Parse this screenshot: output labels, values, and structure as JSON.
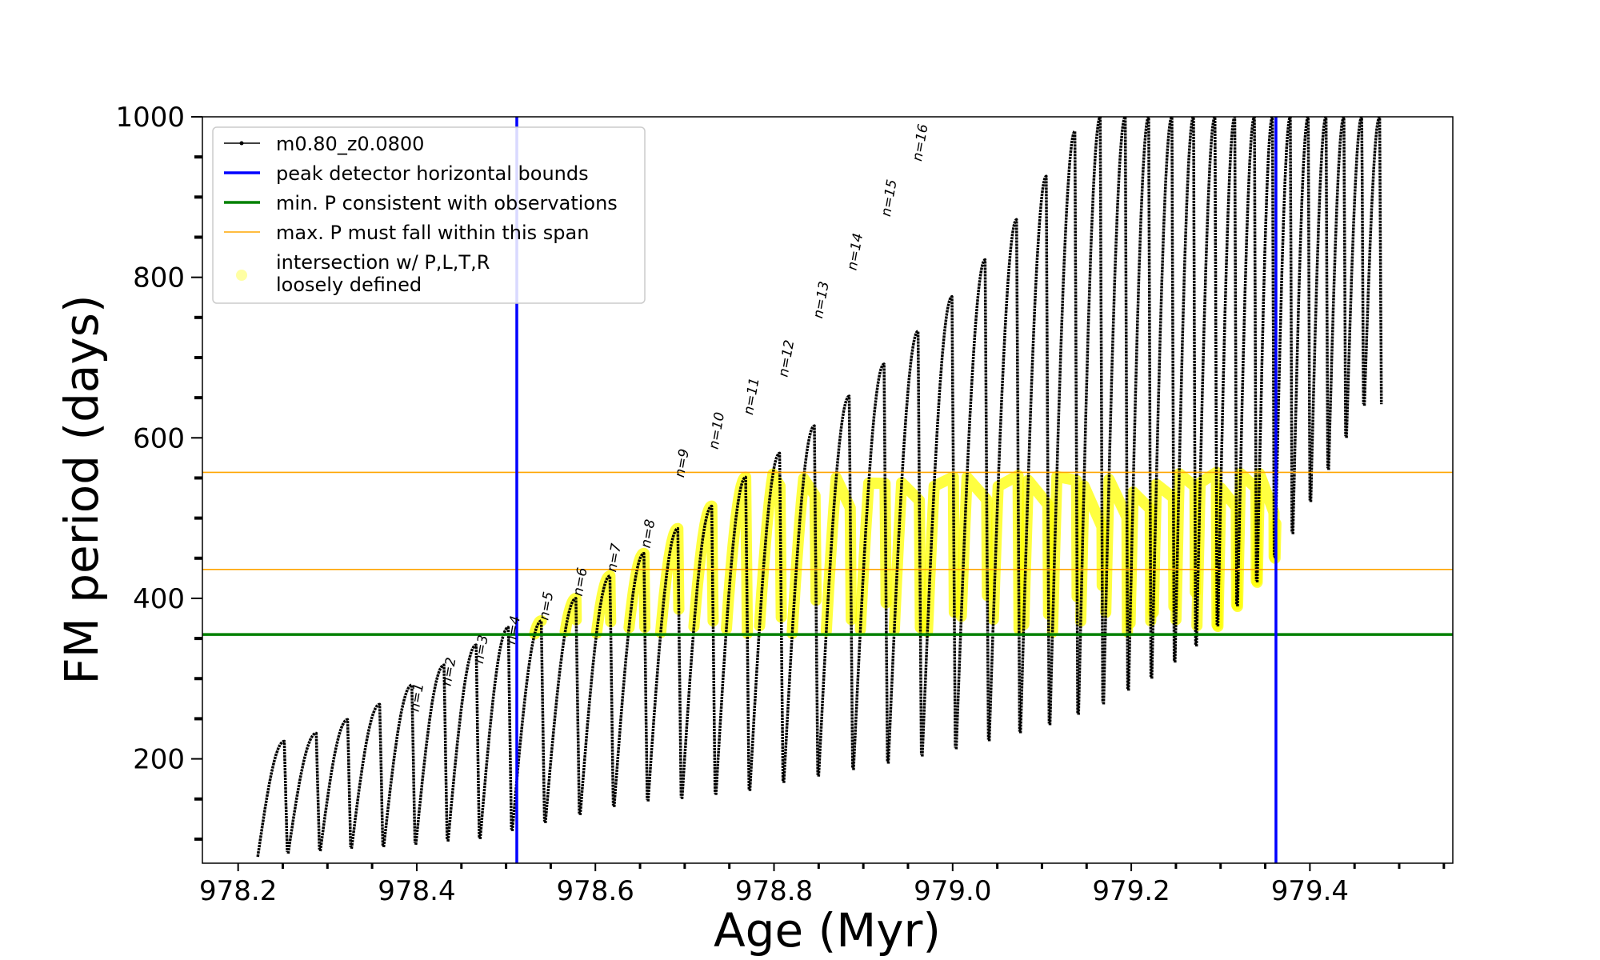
{
  "chart_data": {
    "type": "line",
    "title": "",
    "xlabel": "Age (Myr)",
    "ylabel": "FM period (days)",
    "xlim": [
      978.16,
      979.56
    ],
    "ylim": [
      70,
      1000
    ],
    "x_ticks": [
      "978.2",
      "978.4",
      "978.6",
      "978.8",
      "979.0",
      "979.2",
      "979.4"
    ],
    "x_tick_values": [
      978.2,
      978.4,
      978.6,
      978.8,
      979.0,
      979.2,
      979.4
    ],
    "y_ticks": [
      "200",
      "400",
      "600",
      "800",
      "1000"
    ],
    "y_tick_values": [
      200,
      400,
      600,
      800,
      1000
    ],
    "legend": {
      "placement": "upper-left",
      "entries": [
        {
          "label": "m0.80_z0.0800",
          "color": "#000000",
          "style": "line-dot"
        },
        {
          "label": "peak detector horizontal bounds",
          "color": "#0000ff",
          "style": "line"
        },
        {
          "label": "min. P consistent with observations",
          "color": "#008000",
          "style": "line"
        },
        {
          "label": "max. P must fall within this span",
          "color": "#ffa500",
          "style": "thin-line"
        },
        {
          "label": "intersection w/ P,L,T,R\nloosely defined",
          "color": "#ffff00",
          "style": "marker"
        }
      ]
    },
    "vertical_lines": [
      {
        "x": 978.512,
        "color": "#0000ff"
      },
      {
        "x": 979.362,
        "color": "#0000ff"
      }
    ],
    "horizontal_lines": [
      {
        "y": 355,
        "color": "#008000"
      },
      {
        "y": 436,
        "color": "#ffa500"
      },
      {
        "y": 557,
        "color": "#ffa500"
      }
    ],
    "series": [
      {
        "name": "m0.80_z0.0800",
        "color": "#000000",
        "pulses": [
          {
            "x0": 978.222,
            "x1": 978.255,
            "min": 78,
            "max": 222
          },
          {
            "x0": 978.256,
            "x1": 978.291,
            "min": 82,
            "max": 232
          },
          {
            "x0": 978.292,
            "x1": 978.326,
            "min": 85,
            "max": 249
          },
          {
            "x0": 978.327,
            "x1": 978.362,
            "min": 88,
            "max": 268
          },
          {
            "x0": 978.363,
            "x1": 978.398,
            "min": 90,
            "max": 292
          },
          {
            "x0": 978.399,
            "x1": 978.434,
            "min": 93,
            "max": 317
          },
          {
            "x0": 978.435,
            "x1": 978.47,
            "min": 97,
            "max": 342
          },
          {
            "x0": 978.471,
            "x1": 978.506,
            "min": 100,
            "max": 364
          },
          {
            "x0": 978.507,
            "x1": 978.543,
            "min": 110,
            "max": 372
          },
          {
            "x0": 978.544,
            "x1": 978.582,
            "min": 120,
            "max": 400
          },
          {
            "x0": 978.583,
            "x1": 978.62,
            "min": 130,
            "max": 428
          },
          {
            "x0": 978.621,
            "x1": 978.658,
            "min": 140,
            "max": 456
          },
          {
            "x0": 978.659,
            "x1": 978.696,
            "min": 147,
            "max": 487
          },
          {
            "x0": 978.697,
            "x1": 978.734,
            "min": 150,
            "max": 515
          },
          {
            "x0": 978.735,
            "x1": 978.772,
            "min": 155,
            "max": 551
          },
          {
            "x0": 978.773,
            "x1": 978.81,
            "min": 160,
            "max": 581
          },
          {
            "x0": 978.811,
            "x1": 978.849,
            "min": 170,
            "max": 615
          },
          {
            "x0": 978.85,
            "x1": 978.888,
            "min": 178,
            "max": 652
          },
          {
            "x0": 978.889,
            "x1": 978.927,
            "min": 186,
            "max": 692
          },
          {
            "x0": 978.928,
            "x1": 978.965,
            "min": 194,
            "max": 733
          },
          {
            "x0": 978.966,
            "x1": 979.003,
            "min": 203,
            "max": 776
          },
          {
            "x0": 979.004,
            "x1": 979.04,
            "min": 212,
            "max": 822
          },
          {
            "x0": 979.041,
            "x1": 979.075,
            "min": 222,
            "max": 872
          },
          {
            "x0": 979.076,
            "x1": 979.108,
            "min": 232,
            "max": 926
          },
          {
            "x0": 979.109,
            "x1": 979.14,
            "min": 242,
            "max": 982
          },
          {
            "x0": 979.141,
            "x1": 979.168,
            "min": 255,
            "max": 1000
          },
          {
            "x0": 979.169,
            "x1": 979.196,
            "min": 268,
            "max": 1000
          },
          {
            "x0": 979.197,
            "x1": 979.222,
            "min": 285,
            "max": 1000
          },
          {
            "x0": 979.223,
            "x1": 979.248,
            "min": 300,
            "max": 1000
          },
          {
            "x0": 979.249,
            "x1": 979.272,
            "min": 320,
            "max": 1000
          },
          {
            "x0": 979.273,
            "x1": 979.296,
            "min": 340,
            "max": 1000
          },
          {
            "x0": 979.297,
            "x1": 979.318,
            "min": 365,
            "max": 1000
          },
          {
            "x0": 979.319,
            "x1": 979.34,
            "min": 390,
            "max": 1000
          },
          {
            "x0": 979.341,
            "x1": 979.36,
            "min": 420,
            "max": 1000
          },
          {
            "x0": 979.361,
            "x1": 979.38,
            "min": 450,
            "max": 1000
          },
          {
            "x0": 979.381,
            "x1": 979.4,
            "min": 480,
            "max": 1000
          },
          {
            "x0": 979.401,
            "x1": 979.42,
            "min": 520,
            "max": 1000
          },
          {
            "x0": 979.421,
            "x1": 979.44,
            "min": 560,
            "max": 1000
          },
          {
            "x0": 979.441,
            "x1": 979.46,
            "min": 600,
            "max": 1000
          },
          {
            "x0": 979.461,
            "x1": 979.48,
            "min": 640,
            "max": 1000
          }
        ]
      }
    ],
    "annotations": [
      {
        "text": "n=1",
        "x": 978.402,
        "y": 258
      },
      {
        "text": "n=2",
        "x": 978.438,
        "y": 290
      },
      {
        "text": "n=3",
        "x": 978.474,
        "y": 318
      },
      {
        "text": "n=4",
        "x": 978.51,
        "y": 342
      },
      {
        "text": "n=5",
        "x": 978.547,
        "y": 372
      },
      {
        "text": "n=6",
        "x": 978.585,
        "y": 402
      },
      {
        "text": "n=7",
        "x": 978.623,
        "y": 432
      },
      {
        "text": "n=8",
        "x": 978.661,
        "y": 462
      },
      {
        "text": "n=9",
        "x": 978.699,
        "y": 550
      },
      {
        "text": "n=10",
        "x": 978.737,
        "y": 585
      },
      {
        "text": "n=11",
        "x": 978.776,
        "y": 628
      },
      {
        "text": "n=12",
        "x": 978.815,
        "y": 675
      },
      {
        "text": "n=13",
        "x": 978.854,
        "y": 748
      },
      {
        "text": "n=14",
        "x": 978.892,
        "y": 808
      },
      {
        "text": "n=15",
        "x": 978.93,
        "y": 875
      },
      {
        "text": "n=16",
        "x": 978.965,
        "y": 944
      }
    ]
  }
}
